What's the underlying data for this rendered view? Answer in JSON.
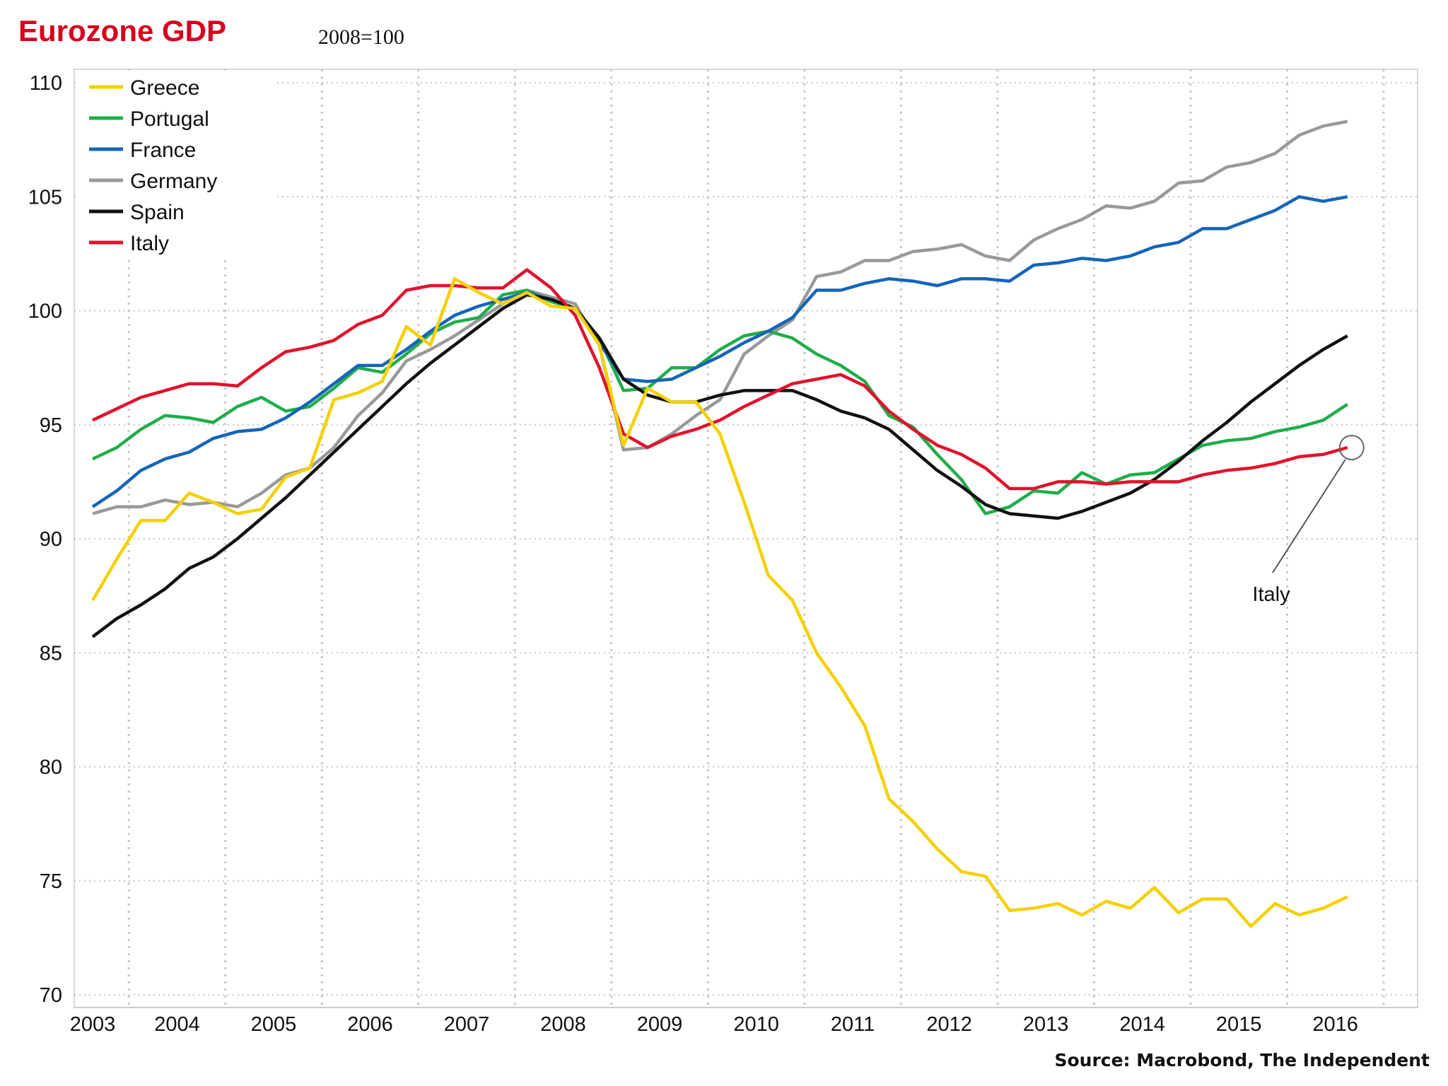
{
  "chart_data": {
    "type": "line",
    "title": "Eurozone GDP",
    "subtitle": "2008=100",
    "source": "Source: Macrobond, The Independent",
    "x_start": 2003.0,
    "x_step": 0.25,
    "x_tick_labels": [
      "2003",
      "2004",
      "2005",
      "2006",
      "2007",
      "2008",
      "2009",
      "2010",
      "2011",
      "2012",
      "2013",
      "2014",
      "2015",
      "2016"
    ],
    "ylim": [
      70,
      110
    ],
    "y_ticks": [
      70,
      75,
      80,
      85,
      90,
      95,
      100,
      105,
      110
    ],
    "grid": true,
    "legend_placement": "top-left",
    "annotation": {
      "label": "Italy",
      "series": "Italy"
    },
    "series": [
      {
        "name": "Greece",
        "color": "#f5d000",
        "values": [
          87.3,
          89.1,
          90.8,
          90.8,
          92.0,
          91.6,
          91.1,
          91.3,
          92.7,
          93.1,
          96.1,
          96.4,
          96.9,
          99.3,
          98.5,
          101.4,
          100.8,
          100.3,
          100.8,
          100.2,
          100.1,
          98.5,
          94.1,
          96.6,
          96.0,
          96.0,
          94.6,
          91.6,
          88.4,
          87.3,
          85.0,
          83.5,
          81.8,
          78.6,
          77.6,
          76.4,
          75.4,
          75.2,
          73.7,
          73.8,
          74.0,
          73.5,
          74.1,
          73.8,
          74.7,
          73.6,
          74.2,
          74.2,
          73.0,
          74.0,
          73.5,
          73.8,
          74.3
        ]
      },
      {
        "name": "Portugal",
        "color": "#1fad4b",
        "values": [
          93.5,
          94.0,
          94.8,
          95.4,
          95.3,
          95.1,
          95.8,
          96.2,
          95.6,
          95.8,
          96.6,
          97.5,
          97.3,
          98.1,
          99.0,
          99.5,
          99.7,
          100.7,
          100.9,
          100.4,
          100.1,
          98.8,
          96.5,
          96.6,
          97.5,
          97.5,
          98.3,
          98.9,
          99.1,
          98.8,
          98.1,
          97.6,
          96.9,
          95.4,
          94.9,
          93.7,
          92.6,
          91.1,
          91.4,
          92.1,
          92.0,
          92.9,
          92.4,
          92.8,
          92.9,
          93.5,
          94.1,
          94.3,
          94.4,
          94.7,
          94.9,
          95.2,
          95.9
        ]
      },
      {
        "name": "France",
        "color": "#1565b8",
        "values": [
          91.4,
          92.1,
          93.0,
          93.5,
          93.8,
          94.4,
          94.7,
          94.8,
          95.3,
          96.0,
          96.8,
          97.6,
          97.6,
          98.3,
          99.1,
          99.8,
          100.2,
          100.5,
          100.8,
          100.5,
          100.1,
          98.6,
          97.0,
          96.9,
          97.0,
          97.5,
          98.0,
          98.6,
          99.1,
          99.7,
          100.9,
          100.9,
          101.2,
          101.4,
          101.3,
          101.1,
          101.4,
          101.4,
          101.3,
          102.0,
          102.1,
          102.3,
          102.2,
          102.4,
          102.8,
          103.0,
          103.6,
          103.6,
          104.0,
          104.4,
          105.0,
          104.8,
          105.0
        ]
      },
      {
        "name": "Germany",
        "color": "#999999",
        "values": [
          91.1,
          91.4,
          91.4,
          91.7,
          91.5,
          91.6,
          91.4,
          92.0,
          92.8,
          93.1,
          94.0,
          95.4,
          96.4,
          97.8,
          98.3,
          98.9,
          99.6,
          100.3,
          100.9,
          100.6,
          100.3,
          98.5,
          93.9,
          94.0,
          94.6,
          95.4,
          96.1,
          98.1,
          98.9,
          99.6,
          101.5,
          101.7,
          102.2,
          102.2,
          102.6,
          102.7,
          102.9,
          102.4,
          102.2,
          103.1,
          103.6,
          104.0,
          104.6,
          104.5,
          104.8,
          105.6,
          105.7,
          106.3,
          106.5,
          106.9,
          107.7,
          108.1,
          108.3
        ]
      },
      {
        "name": "Spain",
        "color": "#111111",
        "values": [
          85.7,
          86.5,
          87.1,
          87.8,
          88.7,
          89.2,
          90.0,
          90.9,
          91.8,
          92.8,
          93.8,
          94.8,
          95.8,
          96.8,
          97.7,
          98.5,
          99.3,
          100.1,
          100.7,
          100.5,
          100.1,
          98.8,
          97.0,
          96.3,
          96.0,
          96.0,
          96.3,
          96.5,
          96.5,
          96.5,
          96.1,
          95.6,
          95.3,
          94.8,
          93.9,
          93.0,
          92.3,
          91.5,
          91.1,
          91.0,
          90.9,
          91.2,
          91.6,
          92.0,
          92.6,
          93.4,
          94.3,
          95.1,
          96.0,
          96.8,
          97.6,
          98.3,
          98.9
        ]
      },
      {
        "name": "Italy",
        "color": "#e0132c",
        "values": [
          95.2,
          95.7,
          96.2,
          96.5,
          96.8,
          96.8,
          96.7,
          97.5,
          98.2,
          98.4,
          98.7,
          99.4,
          99.8,
          100.9,
          101.1,
          101.1,
          101.0,
          101.0,
          101.8,
          101.0,
          99.8,
          97.5,
          94.6,
          94.0,
          94.5,
          94.8,
          95.2,
          95.8,
          96.3,
          96.8,
          97.0,
          97.2,
          96.7,
          95.6,
          94.8,
          94.1,
          93.7,
          93.1,
          92.2,
          92.2,
          92.5,
          92.5,
          92.4,
          92.5,
          92.5,
          92.5,
          92.8,
          93.0,
          93.1,
          93.3,
          93.6,
          93.7,
          94.0
        ]
      }
    ]
  }
}
